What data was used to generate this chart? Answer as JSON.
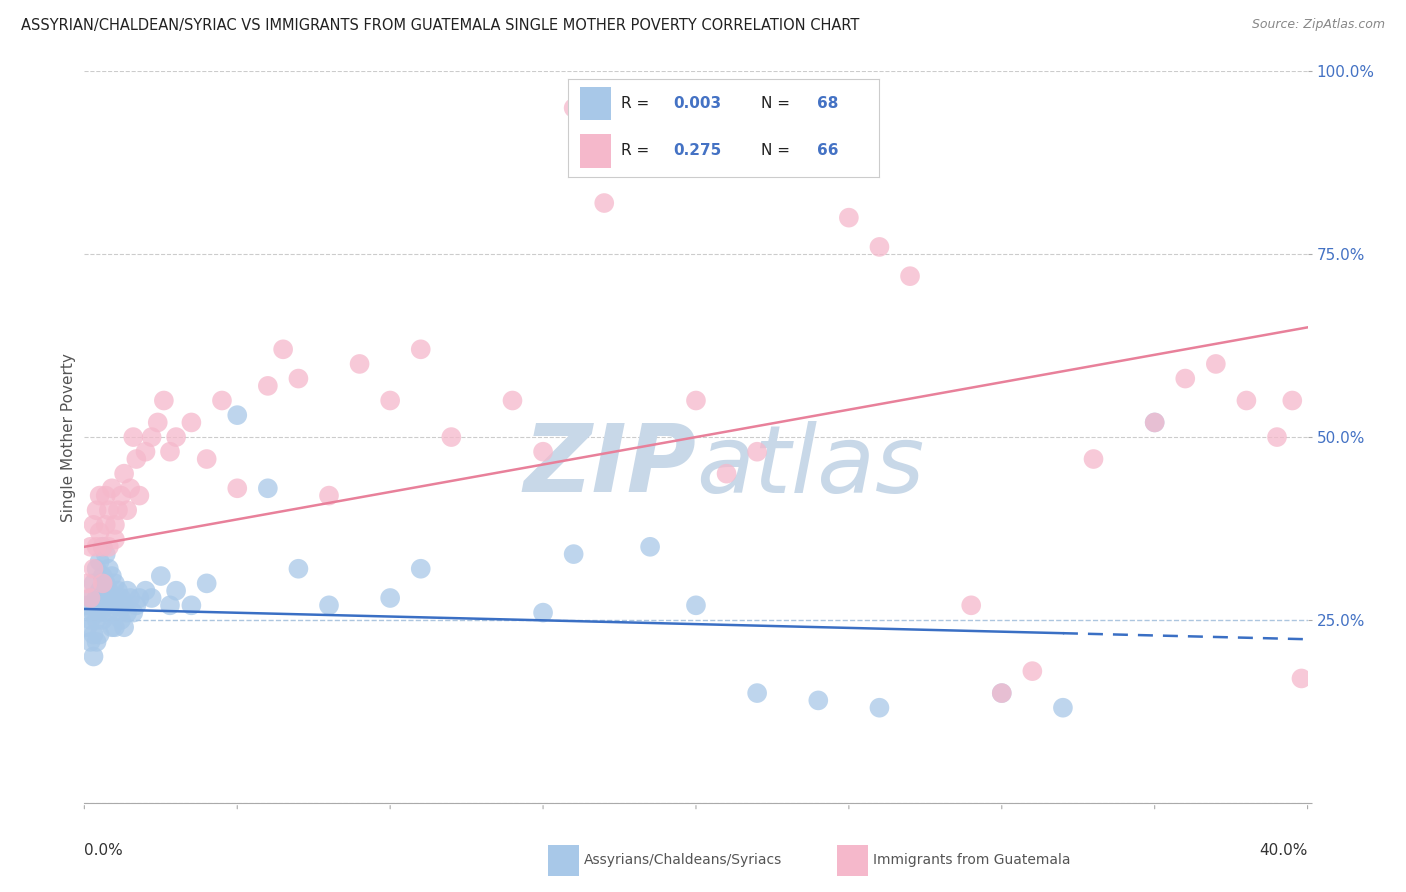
{
  "title": "ASSYRIAN/CHALDEAN/SYRIAC VS IMMIGRANTS FROM GUATEMALA SINGLE MOTHER POVERTY CORRELATION CHART",
  "source": "Source: ZipAtlas.com",
  "ylabel": "Single Mother Poverty",
  "legend_label1": "Assyrians/Chaldeans/Syriacs",
  "legend_label2": "Immigrants from Guatemala",
  "R1": 0.003,
  "N1": 68,
  "R2": 0.275,
  "N2": 66,
  "color1": "#a8c8e8",
  "color2": "#f5b8cb",
  "trendline1_color": "#3a6fc4",
  "trendline2_color": "#e8809a",
  "right_axis_color": "#4472c4",
  "background_color": "#ffffff",
  "grid_color": "#cccccc",
  "watermark_color": "#c8d8e8",
  "xlim": [
    0.0,
    0.4
  ],
  "ylim": [
    0.0,
    1.0
  ],
  "yticks": [
    0.0,
    0.25,
    0.5,
    0.75,
    1.0
  ],
  "ytick_labels": [
    "",
    "25.0%",
    "50.0%",
    "75.0%",
    "100.0%"
  ],
  "blue_x": [
    0.001,
    0.001,
    0.002,
    0.002,
    0.002,
    0.003,
    0.003,
    0.003,
    0.003,
    0.004,
    0.004,
    0.004,
    0.004,
    0.005,
    0.005,
    0.005,
    0.005,
    0.006,
    0.006,
    0.006,
    0.006,
    0.007,
    0.007,
    0.007,
    0.008,
    0.008,
    0.008,
    0.009,
    0.009,
    0.009,
    0.01,
    0.01,
    0.01,
    0.011,
    0.011,
    0.012,
    0.012,
    0.013,
    0.013,
    0.014,
    0.014,
    0.015,
    0.016,
    0.017,
    0.018,
    0.02,
    0.022,
    0.025,
    0.028,
    0.03,
    0.035,
    0.04,
    0.05,
    0.06,
    0.07,
    0.08,
    0.1,
    0.11,
    0.15,
    0.16,
    0.185,
    0.2,
    0.22,
    0.24,
    0.26,
    0.3,
    0.32,
    0.35
  ],
  "blue_y": [
    0.27,
    0.24,
    0.28,
    0.25,
    0.22,
    0.3,
    0.26,
    0.23,
    0.2,
    0.32,
    0.28,
    0.25,
    0.22,
    0.33,
    0.29,
    0.26,
    0.23,
    0.35,
    0.31,
    0.28,
    0.25,
    0.34,
    0.3,
    0.27,
    0.32,
    0.29,
    0.26,
    0.31,
    0.28,
    0.24,
    0.3,
    0.27,
    0.24,
    0.29,
    0.26,
    0.28,
    0.25,
    0.27,
    0.24,
    0.29,
    0.26,
    0.28,
    0.26,
    0.27,
    0.28,
    0.29,
    0.28,
    0.31,
    0.27,
    0.29,
    0.27,
    0.3,
    0.53,
    0.43,
    0.32,
    0.27,
    0.28,
    0.32,
    0.26,
    0.34,
    0.35,
    0.27,
    0.15,
    0.14,
    0.13,
    0.15,
    0.13,
    0.52
  ],
  "pink_x": [
    0.001,
    0.002,
    0.002,
    0.003,
    0.003,
    0.004,
    0.004,
    0.005,
    0.005,
    0.006,
    0.006,
    0.007,
    0.007,
    0.008,
    0.008,
    0.009,
    0.01,
    0.01,
    0.011,
    0.012,
    0.013,
    0.014,
    0.015,
    0.016,
    0.017,
    0.018,
    0.02,
    0.022,
    0.024,
    0.026,
    0.028,
    0.03,
    0.035,
    0.04,
    0.045,
    0.05,
    0.06,
    0.065,
    0.07,
    0.08,
    0.09,
    0.1,
    0.11,
    0.12,
    0.14,
    0.15,
    0.16,
    0.17,
    0.18,
    0.2,
    0.21,
    0.22,
    0.25,
    0.26,
    0.27,
    0.29,
    0.3,
    0.31,
    0.33,
    0.35,
    0.36,
    0.37,
    0.38,
    0.39,
    0.395,
    0.398
  ],
  "pink_y": [
    0.3,
    0.35,
    0.28,
    0.38,
    0.32,
    0.4,
    0.35,
    0.42,
    0.37,
    0.35,
    0.3,
    0.42,
    0.38,
    0.35,
    0.4,
    0.43,
    0.38,
    0.36,
    0.4,
    0.42,
    0.45,
    0.4,
    0.43,
    0.5,
    0.47,
    0.42,
    0.48,
    0.5,
    0.52,
    0.55,
    0.48,
    0.5,
    0.52,
    0.47,
    0.55,
    0.43,
    0.57,
    0.62,
    0.58,
    0.42,
    0.6,
    0.55,
    0.62,
    0.5,
    0.55,
    0.48,
    0.95,
    0.82,
    0.92,
    0.55,
    0.45,
    0.48,
    0.8,
    0.76,
    0.72,
    0.27,
    0.15,
    0.18,
    0.47,
    0.52,
    0.58,
    0.6,
    0.55,
    0.5,
    0.55,
    0.17
  ]
}
